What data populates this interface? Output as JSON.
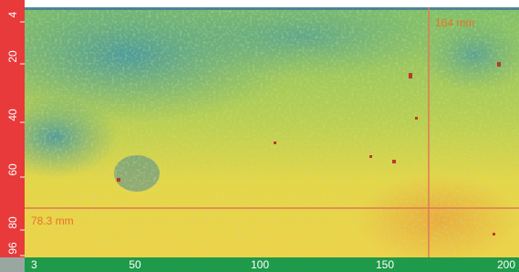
{
  "y_ruler": {
    "labels": [
      "4",
      "20",
      "40",
      "60",
      "80",
      "96"
    ]
  },
  "x_ruler": {
    "corner": "3",
    "labels": [
      "50",
      "100",
      "150",
      "200"
    ]
  },
  "cursors": {
    "x_label": "164 mm",
    "y_label": "78.3 mm"
  }
}
